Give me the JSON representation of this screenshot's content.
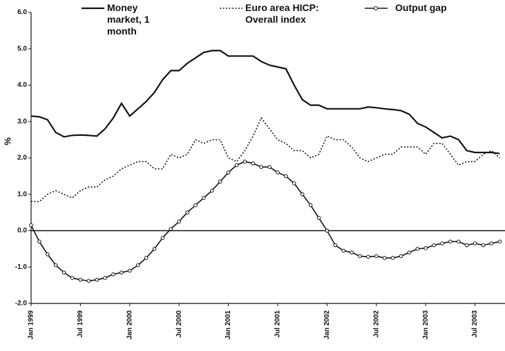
{
  "chart_data": {
    "type": "line",
    "ylabel": "%",
    "categories": [
      "Jan 1999",
      null,
      null,
      null,
      null,
      null,
      "Jul 1999",
      null,
      null,
      null,
      null,
      null,
      "Jan 2000",
      null,
      null,
      null,
      null,
      null,
      "Jul 2000",
      null,
      null,
      null,
      null,
      null,
      "Jan 2001",
      null,
      null,
      null,
      null,
      null,
      "Jul 2001",
      null,
      null,
      null,
      null,
      null,
      "Jan 2002",
      null,
      null,
      null,
      null,
      null,
      "Jul 2002",
      null,
      null,
      null,
      null,
      null,
      "Jan 2003",
      null,
      null,
      null,
      null,
      null,
      "Jul 2003",
      null,
      null,
      null
    ],
    "series": [
      {
        "name": "Money market, 1 month",
        "color": "#111111",
        "style": "solid",
        "values": [
          3.15,
          3.13,
          3.05,
          2.7,
          2.58,
          2.62,
          2.63,
          2.62,
          2.6,
          2.8,
          3.1,
          3.5,
          3.15,
          3.35,
          3.55,
          3.8,
          4.15,
          4.4,
          4.4,
          4.6,
          4.75,
          4.9,
          4.95,
          4.95,
          4.8,
          4.8,
          4.8,
          4.8,
          4.65,
          4.55,
          4.5,
          4.45,
          4.0,
          3.6,
          3.45,
          3.45,
          3.35,
          3.35,
          3.35,
          3.35,
          3.35,
          3.4,
          3.38,
          3.35,
          3.33,
          3.3,
          3.2,
          2.95,
          2.85,
          2.7,
          2.55,
          2.6,
          2.5,
          2.2,
          2.15,
          2.15,
          2.15,
          2.12
        ]
      },
      {
        "name": "Euro area HICP: Overall index",
        "color": "#111111",
        "style": "dotted",
        "values": [
          0.8,
          0.8,
          1.0,
          1.1,
          1.0,
          0.9,
          1.1,
          1.2,
          1.2,
          1.4,
          1.5,
          1.7,
          1.8,
          1.9,
          1.9,
          1.7,
          1.7,
          2.1,
          2.0,
          2.1,
          2.5,
          2.4,
          2.5,
          2.5,
          2.0,
          1.9,
          2.2,
          2.6,
          3.1,
          2.8,
          2.5,
          2.4,
          2.2,
          2.2,
          2.0,
          2.1,
          2.6,
          2.5,
          2.5,
          2.3,
          2.0,
          1.9,
          2.0,
          2.1,
          2.1,
          2.3,
          2.3,
          2.3,
          2.1,
          2.4,
          2.4,
          2.1,
          1.8,
          1.9,
          1.9,
          2.1,
          2.2,
          2.0
        ]
      },
      {
        "name": "Output gap",
        "color": "#111111",
        "style": "markers",
        "values": [
          0.15,
          -0.3,
          -0.65,
          -0.95,
          -1.15,
          -1.3,
          -1.35,
          -1.38,
          -1.35,
          -1.3,
          -1.2,
          -1.15,
          -1.1,
          -0.95,
          -0.75,
          -0.5,
          -0.2,
          0.05,
          0.25,
          0.5,
          0.7,
          0.9,
          1.1,
          1.35,
          1.6,
          1.8,
          1.9,
          1.85,
          1.75,
          1.75,
          1.6,
          1.5,
          1.3,
          1.0,
          0.7,
          0.35,
          0.0,
          -0.4,
          -0.55,
          -0.6,
          -0.7,
          -0.72,
          -0.7,
          -0.75,
          -0.75,
          -0.7,
          -0.6,
          -0.5,
          -0.48,
          -0.4,
          -0.35,
          -0.3,
          -0.3,
          -0.4,
          -0.35,
          -0.4,
          -0.35,
          -0.3
        ]
      }
    ],
    "ylim": [
      -2,
      6
    ],
    "yticks": [
      {
        "value": -2,
        "label": "-2.0"
      },
      {
        "value": -1,
        "label": "-1.0"
      },
      {
        "value": 0,
        "label": "0.0"
      },
      {
        "value": 1,
        "label": "1.0"
      },
      {
        "value": 2,
        "label": "2.0"
      },
      {
        "value": 3,
        "label": "3.0"
      },
      {
        "value": 4,
        "label": "4.0"
      },
      {
        "value": 5,
        "label": "5.0"
      },
      {
        "value": 6,
        "label": "6.0"
      }
    ],
    "grid": false
  }
}
